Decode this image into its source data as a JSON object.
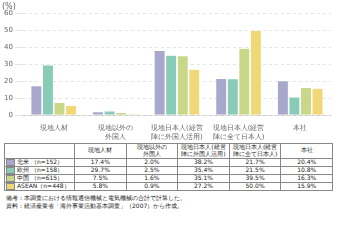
{
  "chart_data": {
    "type": "bar",
    "ylabel": "(%)",
    "categories": [
      "現地人材",
      "現地以外の\n外国人",
      "現地日本人(経営\n陣に外国人活用)",
      "現地日本人(経営\n陣に全て日本人)",
      "本社"
    ],
    "series": [
      {
        "name": "北米 （n=152）",
        "color": "#a8a8cc",
        "values": [
          17.4,
          2.0,
          38.2,
          21.7,
          20.4
        ],
        "value_labels": [
          "17.4%",
          "2.0%",
          "38.2%",
          "21.7%",
          "20.4%"
        ]
      },
      {
        "name": "欧州 （n=158）",
        "color": "#88ccb8",
        "values": [
          29.7,
          2.5,
          35.4,
          21.5,
          10.8
        ],
        "value_labels": [
          "29.7%",
          "2.5%",
          "35.4%",
          "21.5%",
          "10.8%"
        ]
      },
      {
        "name": "中国 （n=615）",
        "color": "#c8d888",
        "values": [
          7.5,
          1.6,
          35.1,
          39.5,
          16.3
        ],
        "value_labels": [
          "7.5%",
          "1.6%",
          "35.1%",
          "39.5%",
          "16.3%"
        ]
      },
      {
        "name": "ASEAN（n=448）",
        "color": "#f0d878",
        "values": [
          5.8,
          0.9,
          27.2,
          50.0,
          15.9
        ],
        "value_labels": [
          "5.8%",
          "0.9%",
          "27.2%",
          "50.0%",
          "15.9%"
        ]
      }
    ],
    "ylim": [
      0,
      60
    ],
    "yticks": [
      0,
      10,
      20,
      30,
      40,
      50,
      60
    ],
    "grid": true,
    "annotations": [
      "備考：本調査における情報通信機械と電気機械の合計で計算した。",
      "資料：経済産業省「海外事業活動基本調査」（2007）から作成。"
    ]
  }
}
